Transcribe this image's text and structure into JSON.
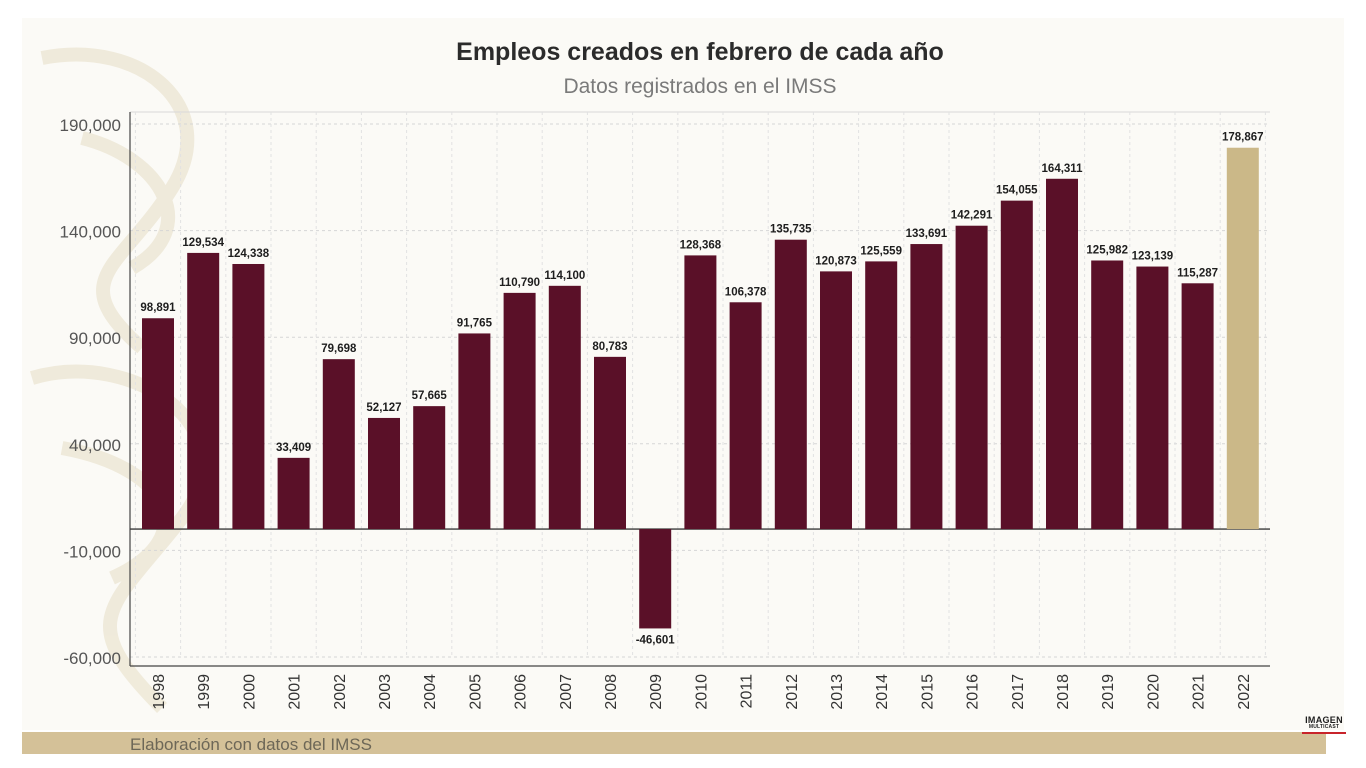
{
  "title": "Empleos creados en febrero de cada año",
  "subtitle": "Datos registrados en el IMSS",
  "footer": "Elaboración con datos del IMSS",
  "logo": {
    "top": "IMAGEN",
    "bottom": "MULTICAST"
  },
  "colors": {
    "bar": "#5a1028",
    "highlight": "#cbb888",
    "footer_bar": "#d4c198"
  },
  "chart_data": {
    "type": "bar",
    "title": "Empleos creados en febrero de cada año",
    "subtitle": "Datos registrados en el IMSS",
    "categories": [
      "1998",
      "1999",
      "2000",
      "2001",
      "2002",
      "2003",
      "2004",
      "2005",
      "2006",
      "2007",
      "2008",
      "2009",
      "2010",
      "2011",
      "2012",
      "2013",
      "2014",
      "2015",
      "2016",
      "2017",
      "2018",
      "2019",
      "2020",
      "2021",
      "2022"
    ],
    "values": [
      98891,
      129534,
      124338,
      33409,
      79698,
      52127,
      57665,
      91765,
      110790,
      114100,
      80783,
      -46601,
      128368,
      106378,
      135735,
      120873,
      125559,
      133691,
      142291,
      154055,
      164311,
      125982,
      123139,
      115287,
      178867
    ],
    "value_labels": [
      "98,891",
      "129,534",
      "124,338",
      "33,409",
      "79,698",
      "52,127",
      "57,665",
      "91,765",
      "110,790",
      "114,100",
      "80,783",
      "-46,601",
      "128,368",
      "106,378",
      "135,735",
      "120,873",
      "125,559",
      "133,691",
      "142,291",
      "154,055",
      "164,311",
      "125,982",
      "123,139",
      "115,287",
      "178,867"
    ],
    "highlight_category": "2022",
    "yticks": [
      190000,
      140000,
      90000,
      40000,
      -10000,
      -60000
    ],
    "ytick_labels": [
      "190,000",
      "140,000",
      "90,000",
      "40,000",
      "-10,000",
      "-60,000"
    ],
    "ylim": [
      -60000,
      190000
    ],
    "grid": true,
    "xlabel": "",
    "ylabel": ""
  }
}
